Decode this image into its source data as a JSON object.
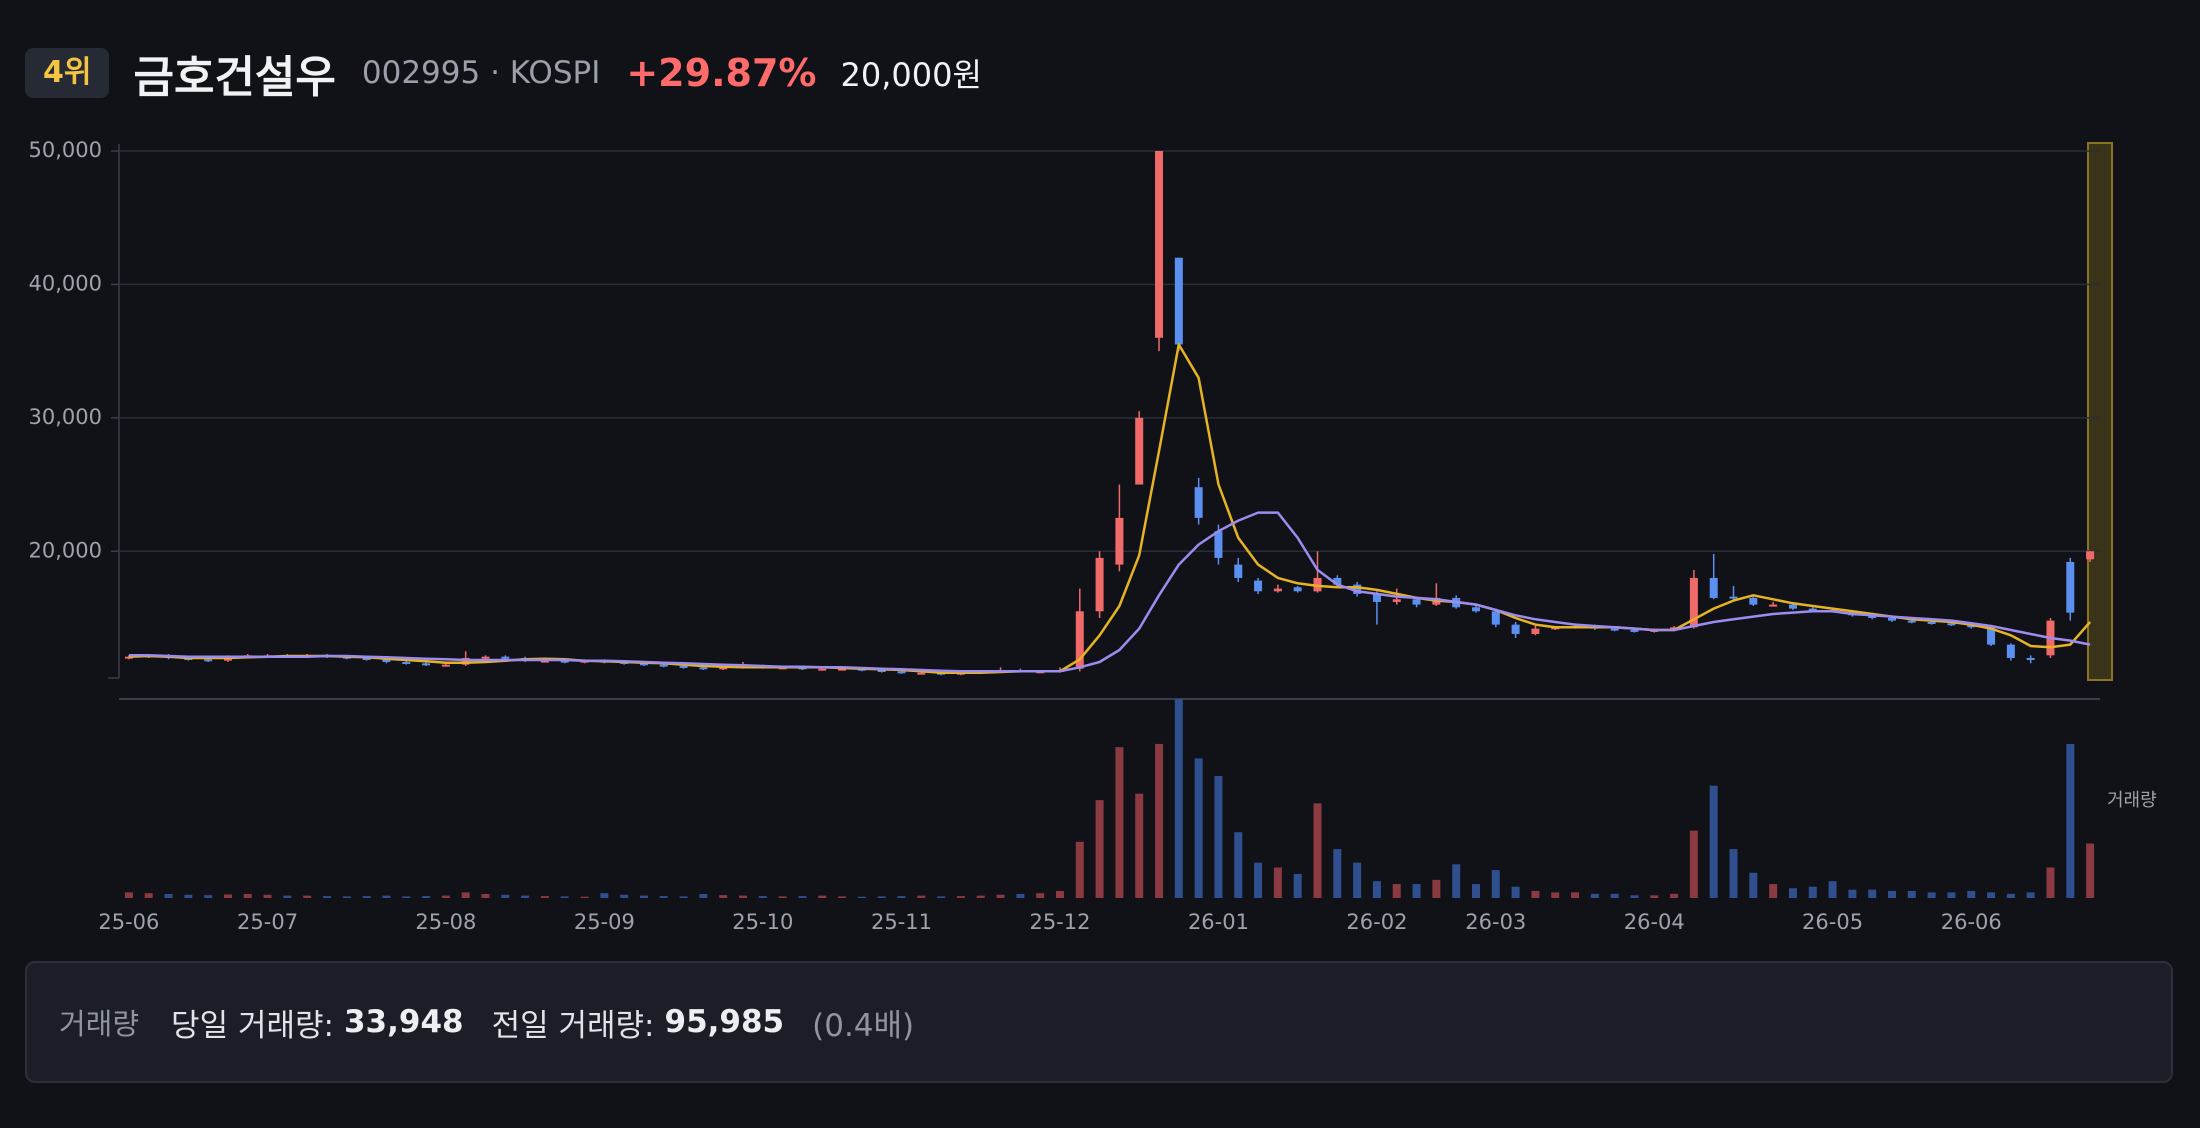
{
  "header": {
    "rank": "4위",
    "name": "금호건설우",
    "code": "002995 · KOSPI",
    "change": "+29.87%",
    "price": "20,000원"
  },
  "chart_data": {
    "type": "candlestick",
    "categories": [
      "25-06",
      null,
      null,
      null,
      null,
      null,
      null,
      "25-07",
      null,
      null,
      null,
      null,
      null,
      null,
      null,
      null,
      "25-08",
      null,
      null,
      null,
      null,
      null,
      null,
      null,
      "25-09",
      null,
      null,
      null,
      null,
      null,
      null,
      null,
      "25-10",
      null,
      null,
      null,
      null,
      null,
      null,
      "25-11",
      null,
      null,
      null,
      null,
      null,
      null,
      null,
      "25-12",
      null,
      null,
      null,
      null,
      null,
      null,
      null,
      "26-01",
      null,
      null,
      null,
      null,
      null,
      null,
      null,
      "26-02",
      null,
      null,
      null,
      null,
      null,
      "26-03",
      null,
      null,
      null,
      null,
      null,
      null,
      null,
      "26-04",
      null,
      null,
      null,
      null,
      null,
      null,
      null,
      null,
      "26-05",
      null,
      null,
      null,
      null,
      null,
      null,
      "26-06",
      null,
      null,
      null,
      null,
      null,
      null
    ],
    "open": [
      12000,
      12100,
      12200,
      12000,
      11900,
      11800,
      12100,
      12200,
      12200,
      12100,
      12200,
      12100,
      12000,
      11900,
      11700,
      11600,
      11500,
      11500,
      12000,
      12100,
      12000,
      11800,
      11800,
      11700,
      11800,
      11700,
      11600,
      11500,
      11400,
      11300,
      11200,
      11300,
      11400,
      11300,
      11300,
      11200,
      11200,
      11200,
      11100,
      11000,
      10900,
      10900,
      10800,
      10900,
      11000,
      11100,
      11000,
      11000,
      11200,
      15500,
      19000,
      25000,
      36000,
      42000,
      24800,
      21500,
      19000,
      17800,
      17000,
      17300,
      17000,
      18000,
      17500,
      16800,
      16200,
      16400,
      16000,
      16500,
      15800,
      15500,
      14500,
      13800,
      14200,
      14300,
      14400,
      14200,
      14100,
      14000,
      14100,
      14300,
      18000,
      16600,
      16500,
      16000,
      16000,
      15700,
      15600,
      15500,
      15200,
      15000,
      14800,
      14700,
      14600,
      14500,
      14300,
      13000,
      12000,
      12200,
      19200,
      19400
    ],
    "high": [
      12200,
      12300,
      12300,
      12100,
      12000,
      12200,
      12300,
      12300,
      12300,
      12300,
      12300,
      12200,
      12100,
      12000,
      11800,
      11700,
      11600,
      12500,
      12200,
      12200,
      12100,
      11900,
      11900,
      11900,
      11900,
      11800,
      11700,
      11600,
      11500,
      11400,
      11400,
      11700,
      11500,
      11400,
      11400,
      11300,
      11300,
      11300,
      11200,
      11100,
      11000,
      11000,
      11000,
      11100,
      11300,
      11200,
      11100,
      11300,
      17200,
      20000,
      25000,
      30500,
      50000,
      42000,
      25500,
      22000,
      19500,
      18000,
      17500,
      17400,
      20000,
      18200,
      17700,
      17000,
      17200,
      16600,
      17600,
      16700,
      16000,
      15700,
      14700,
      14400,
      14400,
      14600,
      14500,
      14300,
      14200,
      14200,
      14400,
      18600,
      19800,
      17400,
      16600,
      16200,
      16100,
      15800,
      15700,
      15600,
      15300,
      15100,
      14900,
      14800,
      14700,
      14600,
      14400,
      13100,
      12200,
      15000,
      19500,
      20000
    ],
    "low": [
      11900,
      12000,
      11900,
      11800,
      11700,
      11700,
      12000,
      12100,
      12000,
      12000,
      12000,
      11900,
      11800,
      11600,
      11500,
      11400,
      11400,
      11400,
      11900,
      11900,
      11700,
      11700,
      11600,
      11600,
      11600,
      11500,
      11400,
      11300,
      11200,
      11100,
      11100,
      11200,
      11200,
      11200,
      11100,
      11100,
      11100,
      11000,
      10900,
      10800,
      10800,
      10700,
      10700,
      10800,
      10900,
      10900,
      10900,
      10900,
      11000,
      15000,
      18500,
      25000,
      35000,
      35000,
      22000,
      19000,
      17700,
      16800,
      16900,
      16900,
      16900,
      17300,
      16600,
      14500,
      16000,
      15800,
      15900,
      15700,
      15400,
      14300,
      13500,
      13700,
      14100,
      14200,
      14100,
      14000,
      13900,
      13900,
      14000,
      14200,
      16400,
      16300,
      15900,
      15900,
      15600,
      15500,
      15400,
      15100,
      14900,
      14700,
      14600,
      14500,
      14400,
      14200,
      12900,
      11800,
      11600,
      12000,
      14800,
      19200
    ],
    "close": [
      12100,
      12200,
      12000,
      11900,
      11800,
      12100,
      12200,
      12200,
      12100,
      12200,
      12100,
      12000,
      11900,
      11700,
      11600,
      11500,
      11500,
      12000,
      12100,
      12000,
      11800,
      11800,
      11700,
      11800,
      11700,
      11600,
      11500,
      11400,
      11300,
      11200,
      11300,
      11400,
      11300,
      11300,
      11200,
      11200,
      11200,
      11100,
      11000,
      10900,
      10900,
      10800,
      10900,
      11000,
      11100,
      11000,
      11000,
      11100,
      15500,
      19500,
      22500,
      30000,
      50000,
      35500,
      22500,
      19500,
      18000,
      17000,
      17200,
      17000,
      18000,
      17500,
      16800,
      16200,
      16400,
      16000,
      16500,
      15800,
      15500,
      14500,
      13800,
      14200,
      14300,
      14400,
      14200,
      14100,
      14000,
      14100,
      14300,
      18000,
      16500,
      16500,
      16000,
      16000,
      15700,
      15600,
      15500,
      15200,
      15000,
      14800,
      14700,
      14600,
      14500,
      14300,
      13000,
      12000,
      11900,
      14800,
      15400,
      20000
    ],
    "volume": [
      3500,
      3000,
      2500,
      2000,
      1800,
      2200,
      2500,
      2000,
      1500,
      1500,
      1200,
      1000,
      1200,
      1500,
      1000,
      1200,
      1500,
      3500,
      2500,
      2000,
      1500,
      1200,
      1000,
      800,
      3000,
      2000,
      1500,
      1200,
      1000,
      2500,
      1800,
      1500,
      1200,
      1000,
      1200,
      1500,
      1000,
      800,
      1000,
      1200,
      1500,
      1000,
      1200,
      1500,
      2000,
      2500,
      3000,
      4400,
      35000,
      61000,
      94000,
      65000,
      96000,
      124000,
      87000,
      76000,
      41000,
      22000,
      19000,
      15000,
      59000,
      30500,
      22000,
      10500,
      8700,
      8700,
      11300,
      21000,
      8700,
      17400,
      7000,
      4400,
      3500,
      3500,
      2600,
      2600,
      1700,
      1700,
      2600,
      42000,
      70000,
      30500,
      15700,
      8700,
      6100,
      7000,
      10500,
      5200,
      5200,
      4400,
      4400,
      3500,
      3500,
      4400,
      3500,
      2600,
      3500,
      19000,
      95985,
      33948
    ],
    "series": [
      {
        "color": "#e6b422",
        "values": [
          12100,
          12150,
          12100,
          12000,
          12000,
          12000,
          12050,
          12100,
          12150,
          12150,
          12150,
          12100,
          12050,
          11950,
          11850,
          11750,
          11650,
          11650,
          11700,
          11800,
          11900,
          11950,
          11900,
          11800,
          11750,
          11700,
          11650,
          11600,
          11500,
          11400,
          11350,
          11300,
          11300,
          11300,
          11300,
          11300,
          11250,
          11200,
          11150,
          11100,
          11000,
          10900,
          10900,
          10900,
          10950,
          11000,
          11000,
          11000,
          11900,
          13700,
          15900,
          19700,
          27500,
          35500,
          33000,
          25000,
          21000,
          19000,
          18000,
          17600,
          17400,
          17300,
          17300,
          17100,
          16800,
          16500,
          16300,
          16200,
          16000,
          15600,
          15000,
          14500,
          14300,
          14300,
          14300,
          14300,
          14200,
          14100,
          14100,
          14900,
          15700,
          16300,
          16700,
          16400,
          16100,
          15900,
          15700,
          15500,
          15300,
          15100,
          14900,
          14800,
          14700,
          14500,
          14200,
          13700,
          12900,
          12800,
          13000,
          14700
        ]
      },
      {
        "color": "#9d8cf0",
        "values": [
          12200,
          12200,
          12150,
          12100,
          12100,
          12100,
          12100,
          12100,
          12100,
          12100,
          12150,
          12150,
          12100,
          12050,
          12000,
          11950,
          11900,
          11850,
          11850,
          11850,
          11850,
          11850,
          11850,
          11800,
          11800,
          11750,
          11700,
          11650,
          11600,
          11550,
          11500,
          11450,
          11400,
          11350,
          11350,
          11300,
          11300,
          11250,
          11200,
          11150,
          11100,
          11050,
          11000,
          11000,
          11000,
          11000,
          11000,
          11000,
          11300,
          11700,
          12600,
          14200,
          16700,
          19000,
          20500,
          21500,
          22300,
          22900,
          22900,
          21000,
          18600,
          17500,
          17000,
          16800,
          16600,
          16500,
          16400,
          16200,
          16000,
          15600,
          15200,
          14900,
          14700,
          14500,
          14400,
          14300,
          14200,
          14100,
          14100,
          14400,
          14700,
          14900,
          15100,
          15300,
          15400,
          15500,
          15500,
          15300,
          15200,
          15100,
          15000,
          14900,
          14800,
          14600,
          14400,
          14100,
          13800,
          13500,
          13300,
          13000
        ]
      }
    ],
    "up_color": "#f06a6a",
    "down_color": "#5b8ff0",
    "volume_up_color": "#8a3a40",
    "volume_down_color": "#2f4f8f",
    "ylim": [
      10500,
      50000
    ],
    "yticks": [
      {
        "value": 20000,
        "label": "20,000"
      },
      {
        "value": 30000,
        "label": "30,000"
      },
      {
        "value": 40000,
        "label": "40,000"
      },
      {
        "value": 50000,
        "label": "50,000"
      }
    ],
    "grid": true,
    "volume_ylim": [
      0,
      124000
    ],
    "volume_label": "거래량"
  },
  "volume_panel": {
    "label": "거래량",
    "today_label": "당일 거래량:",
    "today": "33,948",
    "prev_label": "전일 거래량:",
    "prev": "95,985",
    "ratio": "(0.4배)"
  }
}
